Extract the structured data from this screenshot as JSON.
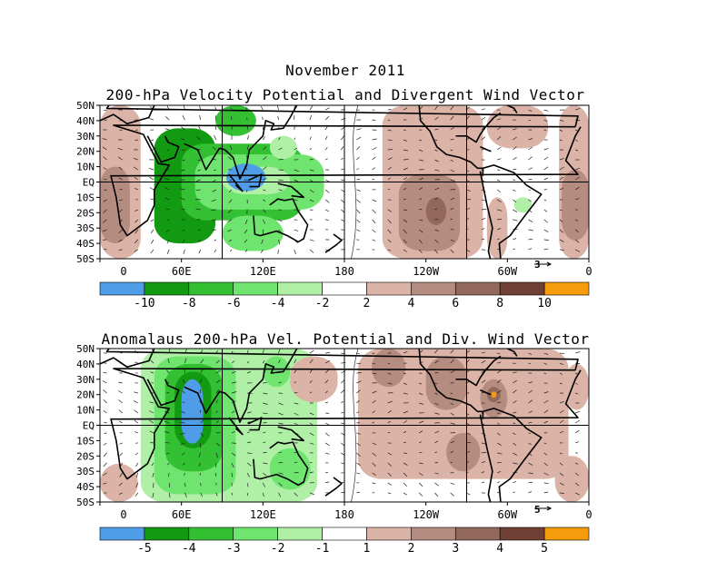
{
  "page": {
    "title": "November 2011",
    "panels": [
      {
        "title": "200-hPa Velocity Potential and Divergent Wind Vector",
        "ref_vector": "3"
      },
      {
        "title": "Anomalaus 200-hPa Vel. Potential and Div. Wind Vector",
        "ref_vector": "5"
      }
    ]
  },
  "chart_data": [
    {
      "type": "heatmap",
      "title": "200-hPa Velocity Potential and Divergent Wind Vector",
      "y_ticks": [
        "50N",
        "40N",
        "30N",
        "20N",
        "10N",
        "EQ",
        "10S",
        "20S",
        "30S",
        "40S",
        "50S"
      ],
      "x_ticks": [
        "0",
        "60E",
        "120E",
        "180",
        "120W",
        "60W",
        "0"
      ],
      "colorbar": {
        "labels": [
          "-10",
          "-8",
          "-6",
          "-4",
          "-2",
          "2",
          "4",
          "6",
          "8",
          "10"
        ],
        "colors": [
          "#4f9de8",
          "#139a13",
          "#33c033",
          "#6fe46f",
          "#b0f0a6",
          "#ffffff",
          "#dbb4a7",
          "#b58c80",
          "#92685c",
          "#6f4033",
          "#f59b0c"
        ]
      },
      "regions": [
        {
          "level": 1,
          "lon": [
            40,
            85
          ],
          "lat": [
            -40,
            35
          ]
        },
        {
          "level": 2,
          "lon": [
            60,
            150
          ],
          "lat": [
            -25,
            25
          ]
        },
        {
          "level": 2,
          "lon": [
            85,
            115
          ],
          "lat": [
            30,
            50
          ]
        },
        {
          "level": 3,
          "lon": [
            70,
            165
          ],
          "lat": [
            -18,
            18
          ]
        },
        {
          "level": 3,
          "lon": [
            90,
            135
          ],
          "lat": [
            -45,
            -22
          ]
        },
        {
          "level": 4,
          "lon": [
            90,
            140
          ],
          "lat": [
            -8,
            10
          ]
        },
        {
          "level": 4,
          "lon": [
            125,
            145
          ],
          "lat": [
            15,
            30
          ]
        },
        {
          "level": 0,
          "lon": [
            93,
            122
          ],
          "lat": [
            -6,
            12
          ]
        },
        {
          "level": 6,
          "lon": [
            0,
            30
          ],
          "lat": [
            -50,
            50
          ]
        },
        {
          "level": 6,
          "lon": [
            338,
            360
          ],
          "lat": [
            -50,
            50
          ]
        },
        {
          "level": 6,
          "lon": [
            208,
            282
          ],
          "lat": [
            -50,
            50
          ]
        },
        {
          "level": 6,
          "lon": [
            285,
            330
          ],
          "lat": [
            22,
            50
          ]
        },
        {
          "level": 6,
          "lon": [
            285,
            300
          ],
          "lat": [
            -50,
            -10
          ]
        },
        {
          "level": 7,
          "lon": [
            0,
            22
          ],
          "lat": [
            -40,
            10
          ]
        },
        {
          "level": 7,
          "lon": [
            340,
            360
          ],
          "lat": [
            -38,
            8
          ]
        },
        {
          "level": 7,
          "lon": [
            220,
            265
          ],
          "lat": [
            -45,
            5
          ]
        },
        {
          "level": 8,
          "lon": [
            240,
            255
          ],
          "lat": [
            -28,
            -10
          ]
        },
        {
          "level": 4,
          "lon": [
            305,
            318
          ],
          "lat": [
            -20,
            -10
          ]
        }
      ]
    },
    {
      "type": "heatmap",
      "title": "Anomalaus 200-hPa Vel. Potential and Div. Wind Vector",
      "y_ticks": [
        "50N",
        "40N",
        "30N",
        "20N",
        "10N",
        "EQ",
        "10S",
        "20S",
        "30S",
        "40S",
        "50S"
      ],
      "x_ticks": [
        "0",
        "60E",
        "120E",
        "180",
        "120W",
        "60W",
        "0"
      ],
      "colorbar": {
        "labels": [
          "-5",
          "-4",
          "-3",
          "-2",
          "-1",
          "1",
          "2",
          "3",
          "4",
          "5"
        ],
        "colors": [
          "#4f9de8",
          "#139a13",
          "#33c033",
          "#6fe46f",
          "#b0f0a6",
          "#ffffff",
          "#dbb4a7",
          "#b58c80",
          "#92685c",
          "#6f4033",
          "#f59b0c"
        ]
      },
      "regions": [
        {
          "level": 4,
          "lon": [
            30,
            160
          ],
          "lat": [
            -50,
            50
          ]
        },
        {
          "level": 3,
          "lon": [
            40,
            100
          ],
          "lat": [
            -45,
            45
          ]
        },
        {
          "level": 3,
          "lon": [
            125,
            155
          ],
          "lat": [
            -42,
            -15
          ]
        },
        {
          "level": 3,
          "lon": [
            120,
            140
          ],
          "lat": [
            25,
            45
          ]
        },
        {
          "level": 2,
          "lon": [
            48,
            90
          ],
          "lat": [
            -30,
            40
          ]
        },
        {
          "level": 1,
          "lon": [
            55,
            82
          ],
          "lat": [
            -15,
            35
          ]
        },
        {
          "level": 0,
          "lon": [
            60,
            76
          ],
          "lat": [
            -12,
            30
          ]
        },
        {
          "level": 6,
          "lon": [
            0,
            28
          ],
          "lat": [
            -50,
            -25
          ]
        },
        {
          "level": 6,
          "lon": [
            335,
            360
          ],
          "lat": [
            -50,
            -20
          ]
        },
        {
          "level": 6,
          "lon": [
            342,
            360
          ],
          "lat": [
            10,
            40
          ]
        },
        {
          "level": 6,
          "lon": [
            140,
            175
          ],
          "lat": [
            15,
            45
          ]
        },
        {
          "level": 6,
          "lon": [
            190,
            345
          ],
          "lat": [
            -35,
            50
          ]
        },
        {
          "level": 7,
          "lon": [
            200,
            225
          ],
          "lat": [
            25,
            50
          ]
        },
        {
          "level": 7,
          "lon": [
            240,
            270
          ],
          "lat": [
            10,
            45
          ]
        },
        {
          "level": 7,
          "lon": [
            255,
            280
          ],
          "lat": [
            -30,
            -5
          ]
        },
        {
          "level": 7,
          "lon": [
            280,
            300
          ],
          "lat": [
            5,
            30
          ]
        },
        {
          "level": 8,
          "lon": [
            285,
            295
          ],
          "lat": [
            15,
            25
          ]
        },
        {
          "level": 10,
          "lon": [
            288,
            292
          ],
          "lat": [
            18,
            22
          ]
        }
      ]
    }
  ]
}
